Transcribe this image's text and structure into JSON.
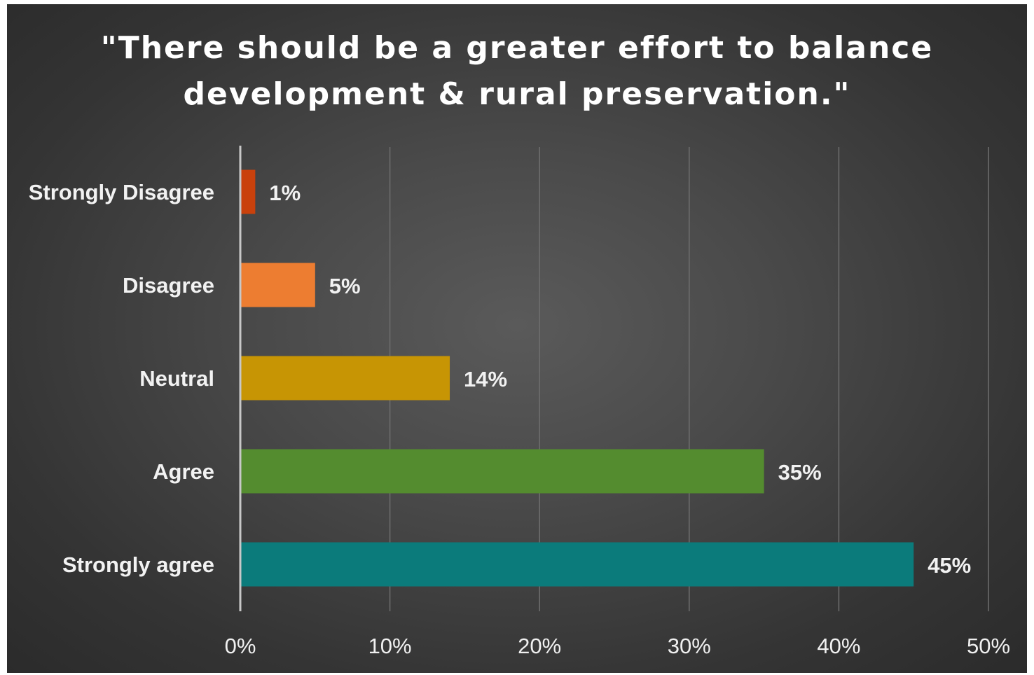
{
  "chart_data": {
    "type": "bar",
    "orientation": "horizontal",
    "title": "\"There should be a greater effort to balance development & rural preservation.\"",
    "title_lines": [
      "\"There should be a greater effort to balance",
      "development & rural preservation.\""
    ],
    "categories": [
      "Strongly Disagree",
      "Disagree",
      "Neutral",
      "Agree",
      "Strongly agree"
    ],
    "values": [
      1,
      5,
      14,
      35,
      45
    ],
    "value_labels": [
      "1%",
      "5%",
      "14%",
      "35%",
      "45%"
    ],
    "colors": [
      "#c9410c",
      "#ed7d31",
      "#c79504",
      "#548c2f",
      "#0b7b7b"
    ],
    "xlim": [
      0,
      50
    ],
    "x_ticks": [
      0,
      10,
      20,
      30,
      40,
      50
    ],
    "x_tick_labels": [
      "0%",
      "10%",
      "20%",
      "30%",
      "40%",
      "50%"
    ],
    "grid": "vertical",
    "legend": "none",
    "xlabel": "",
    "ylabel": ""
  }
}
